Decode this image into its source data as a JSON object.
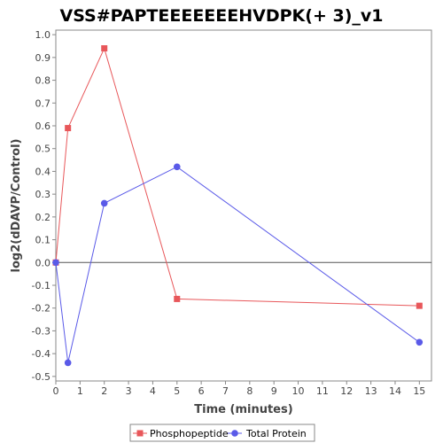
{
  "chart_data": {
    "type": "line",
    "title": "VSS#PAPTEEEEEEEHVDPK(+ 3)_v1",
    "xlabel": "Time (minutes)",
    "ylabel": "log2(dDAVP/Control)",
    "xlim": [
      0,
      15.5
    ],
    "ylim": [
      -0.52,
      1.02
    ],
    "xticks": [
      0,
      1,
      2,
      3,
      4,
      5,
      6,
      7,
      8,
      9,
      10,
      11,
      12,
      13,
      14,
      15
    ],
    "yticks": [
      -0.5,
      -0.4,
      -0.3,
      -0.2,
      -0.1,
      0.0,
      0.1,
      0.2,
      0.3,
      0.4,
      0.5,
      0.6,
      0.7,
      0.8,
      0.9,
      1.0
    ],
    "ytick_labels": [
      "-0.5",
      "-0.4",
      "-0.3",
      "-0.2",
      "-0.1",
      "0.0",
      "0.1",
      "0.2",
      "0.3",
      "0.4",
      "0.5",
      "0.6",
      "0.7",
      "0.8",
      "0.9",
      "1.0"
    ],
    "grid": false,
    "zero_line": true,
    "legend_position": "bottom",
    "series": [
      {
        "name": "Phosphopeptide",
        "color": "#e8575a",
        "marker": "square",
        "x": [
          0,
          0.5,
          2,
          5,
          15
        ],
        "y": [
          0.0,
          0.59,
          0.94,
          -0.16,
          -0.19
        ]
      },
      {
        "name": "Total Protein",
        "color": "#5a5ae8",
        "marker": "circle",
        "x": [
          0,
          0.5,
          2,
          5,
          15
        ],
        "y": [
          0.0,
          -0.44,
          0.26,
          0.42,
          -0.35
        ]
      }
    ]
  }
}
